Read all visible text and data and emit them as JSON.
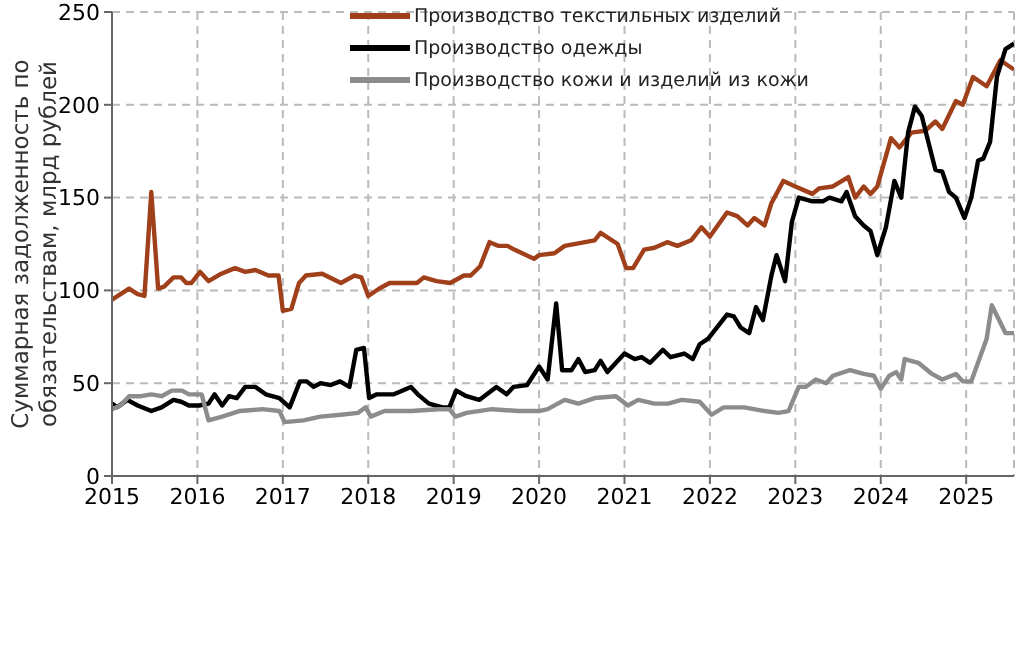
{
  "chart_data": {
    "type": "line",
    "ylabel": "Суммарная задолженность по обязательствам, млрд рублей",
    "xlim": [
      2015,
      2025.56
    ],
    "xticks": [
      2015,
      2016,
      2017,
      2018,
      2019,
      2020,
      2021,
      2022,
      2023,
      2024,
      2025
    ],
    "ylim": [
      0,
      250
    ],
    "yticks": [
      0,
      50,
      100,
      150,
      200,
      250
    ],
    "grid": true,
    "legend": "top",
    "marker": "none",
    "line_style": "solid",
    "series": [
      {
        "name": "Производство текстильных изделий",
        "color": "#a0401a",
        "x": [
          2015.0,
          2015.1,
          2015.2,
          2015.3,
          2015.38,
          2015.46,
          2015.54,
          2015.61,
          2015.72,
          2015.81,
          2015.87,
          2015.93,
          2016.03,
          2016.13,
          2016.28,
          2016.44,
          2016.56,
          2016.68,
          2016.83,
          2016.95,
          2017.0,
          2017.1,
          2017.19,
          2017.27,
          2017.46,
          2017.68,
          2017.84,
          2017.92,
          2018.0,
          2018.13,
          2018.25,
          2018.57,
          2018.65,
          2018.8,
          2018.96,
          2019.12,
          2019.2,
          2019.31,
          2019.42,
          2019.52,
          2019.63,
          2019.71,
          2019.94,
          2020.0,
          2020.18,
          2020.3,
          2020.65,
          2020.72,
          2020.92,
          2021.02,
          2021.1,
          2021.23,
          2021.35,
          2021.5,
          2021.62,
          2021.78,
          2021.9,
          2022.0,
          2022.2,
          2022.32,
          2022.44,
          2022.52,
          2022.64,
          2022.72,
          2022.86,
          2023.0,
          2023.2,
          2023.28,
          2023.44,
          2023.62,
          2023.7,
          2023.8,
          2023.88,
          2023.96,
          2024.12,
          2024.22,
          2024.36,
          2024.52,
          2024.64,
          2024.72,
          2024.88,
          2024.96,
          2025.08,
          2025.24,
          2025.4,
          2025.56
        ],
        "values": [
          95,
          98,
          101,
          98,
          97,
          153,
          101,
          102,
          107,
          107,
          104,
          104,
          110,
          105,
          109,
          112,
          110,
          111,
          108,
          108,
          89,
          90,
          104,
          108,
          109,
          104,
          108,
          107,
          97,
          101,
          104,
          104,
          107,
          105,
          104,
          108,
          108,
          113,
          126,
          124,
          124,
          122,
          117,
          119,
          120,
          124,
          127,
          131,
          125,
          112,
          112,
          122,
          123,
          126,
          124,
          127,
          134,
          129,
          142,
          140,
          135,
          139,
          135,
          147,
          159,
          156,
          152,
          155,
          156,
          161,
          150,
          156,
          152,
          156,
          182,
          177,
          185,
          186,
          191,
          187,
          202,
          200,
          215,
          210,
          224,
          219
        ]
      },
      {
        "name": "Производство одежды",
        "color": "#000000",
        "x": [
          2015.0,
          2015.06,
          2015.18,
          2015.3,
          2015.46,
          2015.58,
          2015.72,
          2015.81,
          2015.9,
          2016.02,
          2016.13,
          2016.2,
          2016.29,
          2016.37,
          2016.46,
          2016.56,
          2016.68,
          2016.8,
          2016.96,
          2017.08,
          2017.2,
          2017.28,
          2017.36,
          2017.44,
          2017.56,
          2017.67,
          2017.78,
          2017.86,
          2017.95,
          2018.01,
          2018.1,
          2018.3,
          2018.5,
          2018.58,
          2018.71,
          2018.87,
          2018.95,
          2019.03,
          2019.15,
          2019.3,
          2019.5,
          2019.62,
          2019.7,
          2019.86,
          2020.0,
          2020.1,
          2020.2,
          2020.27,
          2020.38,
          2020.46,
          2020.54,
          2020.65,
          2020.72,
          2020.8,
          2021.0,
          2021.12,
          2021.2,
          2021.3,
          2021.45,
          2021.54,
          2021.7,
          2021.8,
          2021.88,
          2021.98,
          2022.2,
          2022.28,
          2022.36,
          2022.46,
          2022.54,
          2022.62,
          2022.72,
          2022.78,
          2022.88,
          2022.96,
          2023.04,
          2023.2,
          2023.32,
          2023.4,
          2023.54,
          2023.6,
          2023.7,
          2023.8,
          2023.88,
          2023.96,
          2024.06,
          2024.16,
          2024.24,
          2024.32,
          2024.4,
          2024.48,
          2024.64,
          2024.72,
          2024.8,
          2024.88,
          2024.98,
          2025.06,
          2025.14,
          2025.2,
          2025.28,
          2025.36,
          2025.46,
          2025.56
        ],
        "values": [
          39,
          37,
          41,
          38,
          35,
          37,
          41,
          40,
          38,
          38,
          39,
          44,
          38,
          43,
          42,
          48,
          48,
          44,
          42,
          37,
          51,
          51,
          48,
          50,
          49,
          51,
          48,
          68,
          69,
          42,
          44,
          44,
          48,
          44,
          39,
          37,
          37,
          46,
          43,
          41,
          48,
          44,
          48,
          49,
          59,
          52,
          93,
          57,
          57,
          63,
          56,
          57,
          62,
          56,
          66,
          63,
          64,
          61,
          68,
          64,
          66,
          63,
          71,
          74,
          87,
          86,
          80,
          77,
          91,
          84,
          108,
          119,
          105,
          137,
          150,
          148,
          148,
          150,
          148,
          153,
          140,
          135,
          132,
          119,
          134,
          159,
          150,
          185,
          199,
          194,
          165,
          164,
          153,
          150,
          139,
          150,
          170,
          171,
          180,
          215,
          230,
          233
        ]
      },
      {
        "name": "Производство кожи и изделий из кожи",
        "color": "#8c8c8c",
        "x": [
          2015.0,
          2015.1,
          2015.2,
          2015.34,
          2015.46,
          2015.58,
          2015.7,
          2015.82,
          2015.9,
          2016.05,
          2016.13,
          2016.29,
          2016.49,
          2016.76,
          2016.96,
          2017.02,
          2017.24,
          2017.44,
          2017.68,
          2017.88,
          2017.97,
          2018.03,
          2018.19,
          2018.5,
          2018.82,
          2018.95,
          2019.02,
          2019.15,
          2019.45,
          2019.76,
          2020.0,
          2020.1,
          2020.3,
          2020.46,
          2020.65,
          2020.9,
          2021.04,
          2021.16,
          2021.35,
          2021.51,
          2021.67,
          2021.88,
          2022.02,
          2022.16,
          2022.4,
          2022.64,
          2022.8,
          2022.92,
          2023.04,
          2023.12,
          2023.24,
          2023.36,
          2023.44,
          2023.64,
          2023.8,
          2023.92,
          2024.0,
          2024.1,
          2024.18,
          2024.24,
          2024.28,
          2024.44,
          2024.6,
          2024.72,
          2024.88,
          2024.96,
          2025.06,
          2025.24,
          2025.3,
          2025.46,
          2025.56
        ],
        "values": [
          36,
          38,
          43,
          43,
          44,
          43,
          46,
          46,
          44,
          44,
          30,
          32,
          35,
          36,
          35,
          29,
          30,
          32,
          33,
          34,
          37,
          32,
          35,
          35,
          36,
          36,
          32,
          34,
          36,
          35,
          35,
          36,
          41,
          39,
          42,
          43,
          38,
          41,
          39,
          39,
          41,
          40,
          33,
          37,
          37,
          35,
          34,
          35,
          48,
          48,
          52,
          50,
          54,
          57,
          55,
          54,
          47,
          54,
          56,
          52,
          63,
          61,
          55,
          52,
          55,
          51,
          51,
          74,
          92,
          77,
          77
        ]
      }
    ]
  }
}
